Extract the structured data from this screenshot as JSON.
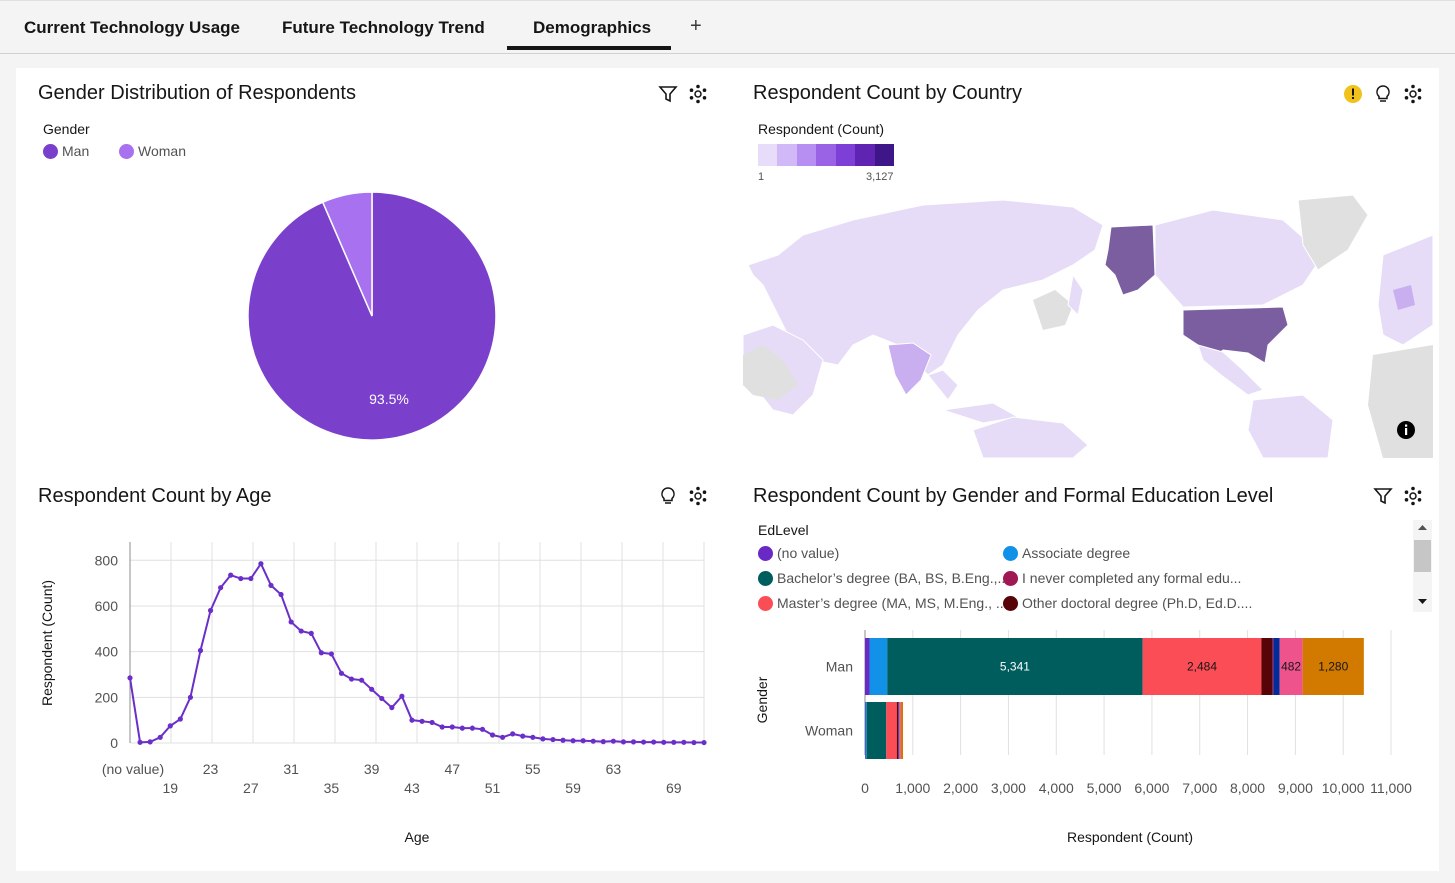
{
  "tabs": [
    {
      "label": "Current Technology Usage"
    },
    {
      "label": "Future Technology Trend"
    },
    {
      "label": "Demographics"
    }
  ],
  "tab_add_label": "+",
  "gender_panel": {
    "title": "Gender Distribution of Respondents",
    "legend_title": "Gender",
    "legend": [
      {
        "label": "Man",
        "color": "#7a3fcb"
      },
      {
        "label": "Woman",
        "color": "#a871f0"
      }
    ],
    "slice_label": "93.5%",
    "icons": [
      "filter-icon",
      "settings-icon"
    ]
  },
  "country_panel": {
    "title": "Respondent Count by Country",
    "legend_title": "Respondent (Count)",
    "legend_min": "1",
    "legend_max": "3,127",
    "scale_colors": [
      "#e8dcfb",
      "#d1b8f7",
      "#b78ef1",
      "#9a63e6",
      "#7e3fd6",
      "#5f25b2",
      "#3f1687"
    ],
    "icons": [
      "warning-icon",
      "lightbulb-icon",
      "settings-icon",
      "info-icon"
    ]
  },
  "age_panel": {
    "title": "Respondent Count by Age",
    "icons": [
      "lightbulb-icon",
      "settings-icon"
    ]
  },
  "edu_panel": {
    "title": "Respondent Count by Gender and Formal Education Level",
    "legend_title": "EdLevel",
    "legend": [
      {
        "label": "(no value)",
        "color": "#6929c4"
      },
      {
        "label": "Associate degree",
        "color": "#1192e8"
      },
      {
        "label": "Bachelor’s degree (BA, BS, B.Eng.,...",
        "color": "#005d5d"
      },
      {
        "label": "I never completed any formal edu...",
        "color": "#9f1853"
      },
      {
        "label": "Master’s degree (MA, MS, M.Eng., ...",
        "color": "#fa4d56"
      },
      {
        "label": "Other doctoral degree (Ph.D, Ed.D....",
        "color": "#570408"
      }
    ],
    "icons": [
      "filter-icon",
      "settings-icon"
    ]
  },
  "chart_data": [
    {
      "type": "pie",
      "title": "Gender Distribution of Respondents",
      "legend_title": "Gender",
      "categories": [
        "Man",
        "Woman"
      ],
      "values": [
        93.5,
        6.5
      ],
      "data_labels": [
        "93.5%"
      ],
      "colors": [
        "#7a3fcb",
        "#a871f0"
      ]
    },
    {
      "type": "line",
      "title": "Respondent Count by Age",
      "xlabel": "Age",
      "ylabel": "Respondent (Count)",
      "ylim": [
        0,
        880
      ],
      "yticks": [
        0,
        200,
        400,
        600,
        800
      ],
      "x_tick_labels": [
        "(no value)",
        "19",
        "23",
        "27",
        "31",
        "35",
        "39",
        "43",
        "47",
        "51",
        "55",
        "59",
        "63",
        "69"
      ],
      "x": [
        "(no value)",
        16,
        17,
        18,
        19,
        20,
        21,
        22,
        23,
        24,
        25,
        26,
        27,
        28,
        29,
        30,
        31,
        32,
        33,
        34,
        35,
        36,
        37,
        38,
        39,
        40,
        41,
        42,
        43,
        44,
        45,
        46,
        47,
        48,
        49,
        50,
        51,
        52,
        53,
        54,
        55,
        56,
        57,
        58,
        59,
        60,
        61,
        62,
        63,
        64,
        65,
        66,
        67,
        68,
        69,
        70,
        71,
        72
      ],
      "series": [
        {
          "values": [
            285,
            3,
            5,
            25,
            75,
            105,
            200,
            405,
            580,
            680,
            735,
            720,
            720,
            785,
            690,
            650,
            530,
            490,
            480,
            395,
            390,
            305,
            280,
            275,
            235,
            195,
            155,
            205,
            100,
            95,
            90,
            70,
            70,
            65,
            65,
            60,
            35,
            25,
            40,
            30,
            25,
            18,
            15,
            12,
            10,
            10,
            8,
            6,
            8,
            5,
            5,
            4,
            4,
            3,
            3,
            3,
            2,
            2
          ]
        }
      ],
      "color": "#6b2fc9"
    },
    {
      "type": "bar",
      "orientation": "horizontal",
      "stacked": true,
      "title": "Respondent Count by Gender and Formal Education Level",
      "xlabel": "Respondent (Count)",
      "ylabel": "Gender",
      "categories": [
        "Man",
        "Woman"
      ],
      "xlim": [
        0,
        11000
      ],
      "xticks": [
        "0",
        "1,000",
        "2,000",
        "3,000",
        "4,000",
        "5,000",
        "6,000",
        "7,000",
        "8,000",
        "9,000",
        "10,000",
        "11,000"
      ],
      "series": [
        {
          "name": "(no value)",
          "color": "#6929c4",
          "values": [
            95,
            10
          ]
        },
        {
          "name": "Associate degree",
          "color": "#1192e8",
          "values": [
            370,
            25
          ]
        },
        {
          "name": "Bachelor’s degree (BA, BS, B.Eng.,...",
          "color": "#005d5d",
          "values": [
            5341,
            410
          ],
          "labels": [
            "5,341",
            ""
          ]
        },
        {
          "name": "Master’s degree (MA, MS, M.Eng., ...",
          "color": "#fa4d56",
          "values": [
            2484,
            220
          ],
          "labels": [
            "2,484",
            ""
          ]
        },
        {
          "name": "Other doctoral degree (Ph.D, Ed.D....",
          "color": "#570408",
          "values": [
            230,
            25
          ]
        },
        {
          "name": "I never completed any formal edu...",
          "color": "#9f1853",
          "values": [
            20,
            5
          ]
        },
        {
          "color": "#002d9c",
          "values": [
            130,
            15
          ]
        },
        {
          "color": "#ee538b",
          "values": [
            482,
            40
          ],
          "labels": [
            "482",
            ""
          ]
        },
        {
          "color": "#d27a00",
          "values": [
            1280,
            45
          ],
          "labels": [
            "1,280",
            ""
          ]
        }
      ]
    }
  ]
}
